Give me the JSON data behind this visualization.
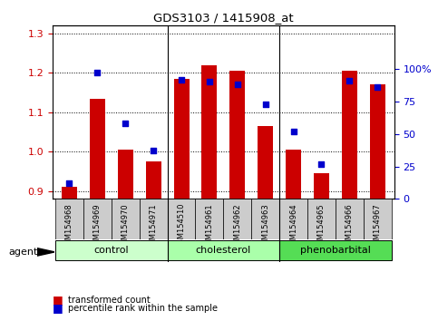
{
  "title": "GDS3103 / 1415908_at",
  "samples": [
    "GSM154968",
    "GSM154969",
    "GSM154970",
    "GSM154971",
    "GSM154510",
    "GSM154961",
    "GSM154962",
    "GSM154963",
    "GSM154964",
    "GSM154965",
    "GSM154966",
    "GSM154967"
  ],
  "transformed_count": [
    0.91,
    1.135,
    1.005,
    0.975,
    1.185,
    1.22,
    1.205,
    1.065,
    1.005,
    0.945,
    1.205,
    1.17
  ],
  "percentile_rank": [
    12,
    97,
    58,
    37,
    92,
    90,
    88,
    73,
    52,
    27,
    91,
    86
  ],
  "groups": [
    {
      "label": "control",
      "start": 0,
      "end": 4,
      "color": "#ccffcc"
    },
    {
      "label": "cholesterol",
      "start": 4,
      "end": 8,
      "color": "#aaffaa"
    },
    {
      "label": "phenobarbital",
      "start": 8,
      "end": 12,
      "color": "#55dd55"
    }
  ],
  "ylim_left": [
    0.88,
    1.32
  ],
  "ylim_right": [
    0,
    133.33
  ],
  "yticks_left": [
    0.9,
    1.0,
    1.1,
    1.2,
    1.3
  ],
  "yticks_right": [
    0,
    25,
    50,
    75,
    100
  ],
  "ytick_labels_right": [
    "0",
    "25",
    "50",
    "75",
    "100%"
  ],
  "bar_color": "#cc0000",
  "dot_color": "#0000cc",
  "grid_color": "#000000",
  "bg_color": "#ffffff",
  "plot_bg": "#ffffff",
  "sample_box_color": "#cccccc",
  "agent_label": "agent",
  "legend_bar": "transformed count",
  "legend_dot": "percentile rank within the sample"
}
